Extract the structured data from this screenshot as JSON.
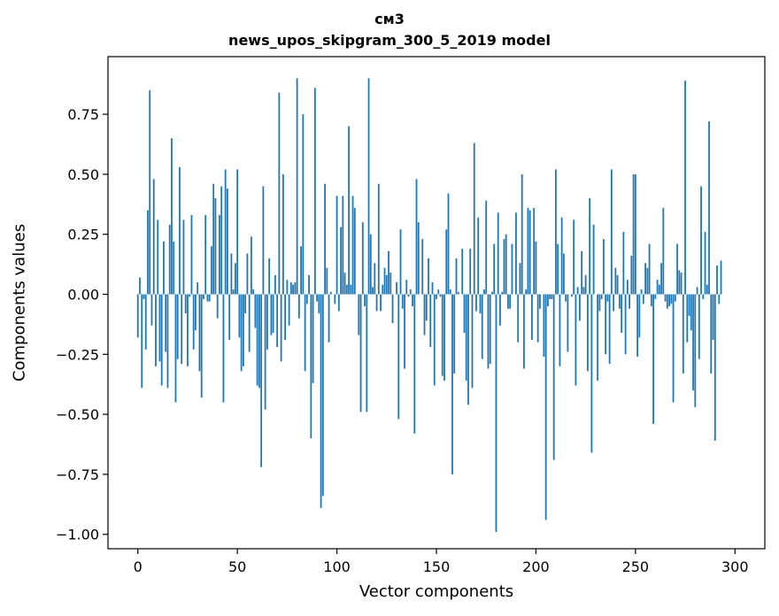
{
  "chart_data": {
    "type": "bar",
    "title_line1": "см3",
    "title_line2": "news_upos_skipgram_300_5_2019 model",
    "xlabel": "Vector components",
    "ylabel": "Components values",
    "xlim": [
      -15,
      315
    ],
    "ylim": [
      -1.06,
      0.99
    ],
    "xticks": [
      0,
      50,
      100,
      150,
      200,
      250,
      300
    ],
    "xtick_labels": [
      "0",
      "50",
      "100",
      "150",
      "200",
      "250",
      "300"
    ],
    "yticks": [
      0.75,
      0.5,
      0.25,
      0.0,
      -0.25,
      -0.5,
      -0.75,
      -1.0
    ],
    "ytick_labels": [
      "0.75",
      "0.50",
      "0.25",
      "0.00",
      "−0.25",
      "−0.50",
      "−0.75",
      "−1.00"
    ],
    "bar_color": "#1f77b4",
    "grid": false,
    "values": [
      -0.18,
      0.07,
      -0.39,
      -0.02,
      -0.23,
      0.35,
      0.85,
      -0.13,
      0.48,
      -0.3,
      0.31,
      -0.28,
      -0.38,
      0.22,
      -0.24,
      -0.39,
      0.29,
      0.65,
      0.22,
      -0.45,
      -0.27,
      0.53,
      -0.29,
      0.31,
      -0.08,
      -0.3,
      -0.01,
      0.33,
      -0.23,
      -0.15,
      0.05,
      -0.32,
      -0.43,
      -0.02,
      0.33,
      -0.03,
      -0.03,
      0.2,
      0.46,
      0.4,
      -0.1,
      0.33,
      0.45,
      -0.45,
      0.52,
      0.44,
      -0.19,
      0.17,
      0.02,
      0.13,
      0.52,
      -0.18,
      -0.32,
      -0.3,
      -0.08,
      0.17,
      -0.24,
      0.24,
      0.02,
      -0.14,
      -0.38,
      -0.39,
      -0.72,
      0.45,
      -0.48,
      -0.23,
      0.15,
      -0.17,
      -0.16,
      0.08,
      -0.22,
      0.84,
      -0.28,
      0.5,
      -0.19,
      0.06,
      -0.13,
      0.05,
      0.04,
      0.05,
      0.9,
      -0.1,
      0.2,
      0.75,
      -0.32,
      -0.04,
      0.08,
      -0.6,
      -0.37,
      0.86,
      -0.03,
      -0.08,
      -0.89,
      -0.84,
      0.46,
      0.11,
      -0.2,
      0.01,
      0.0,
      -0.04,
      0.41,
      -0.07,
      0.28,
      0.41,
      0.09,
      0.04,
      0.7,
      0.04,
      0.41,
      0.36,
      0.0,
      -0.17,
      -0.49,
      0.3,
      -0.05,
      -0.49,
      0.9,
      0.25,
      0.03,
      0.13,
      -0.07,
      0.46,
      -0.07,
      0.04,
      0.11,
      0.08,
      0.18,
      0.09,
      -0.12,
      0.0,
      0.05,
      -0.52,
      0.27,
      -0.06,
      -0.31,
      0.06,
      -0.01,
      0.02,
      -0.05,
      -0.58,
      0.48,
      0.3,
      0.0,
      0.23,
      -0.17,
      -0.11,
      0.15,
      -0.22,
      0.05,
      -0.38,
      -0.02,
      0.02,
      -0.01,
      -0.34,
      -0.36,
      0.27,
      0.42,
      0.02,
      -0.75,
      -0.33,
      0.15,
      0.01,
      0.0,
      0.19,
      -0.16,
      -0.36,
      -0.46,
      0.19,
      -0.39,
      0.63,
      -0.07,
      0.32,
      -0.08,
      -0.27,
      0.02,
      0.39,
      -0.31,
      -0.29,
      0.01,
      0.21,
      -0.99,
      0.34,
      -0.13,
      0.01,
      0.23,
      0.25,
      -0.06,
      -0.06,
      0.21,
      0.0,
      0.34,
      -0.2,
      0.13,
      0.5,
      -0.31,
      0.02,
      0.36,
      0.35,
      -0.19,
      0.36,
      0.22,
      -0.2,
      -0.06,
      0.0,
      -0.26,
      -0.94,
      -0.05,
      -0.02,
      -0.02,
      -0.69,
      0.52,
      0.21,
      -0.3,
      0.32,
      0.17,
      -0.03,
      -0.24,
      0.0,
      -0.01,
      0.31,
      -0.38,
      0.03,
      -0.11,
      0.18,
      0.03,
      0.08,
      -0.32,
      0.4,
      -0.66,
      0.29,
      0.0,
      -0.36,
      -0.07,
      -0.02,
      0.23,
      -0.25,
      -0.03,
      -0.29,
      0.52,
      -0.07,
      0.11,
      0.08,
      -0.06,
      -0.16,
      0.26,
      -0.25,
      0.06,
      -0.06,
      0.16,
      0.5,
      0.5,
      -0.26,
      -0.18,
      0.02,
      -0.04,
      0.13,
      0.11,
      0.21,
      -0.05,
      -0.54,
      -0.02,
      0.06,
      0.04,
      0.13,
      0.36,
      -0.03,
      -0.06,
      -0.05,
      -0.04,
      -0.45,
      -0.03,
      0.21,
      0.1,
      0.09,
      -0.33,
      0.89,
      -0.2,
      -0.09,
      -0.15,
      -0.4,
      -0.47,
      0.03,
      -0.27,
      0.45,
      -0.02,
      0.26,
      0.04,
      0.72,
      -0.33,
      -0.19,
      -0.61,
      0.12,
      -0.04,
      0.14
    ]
  }
}
